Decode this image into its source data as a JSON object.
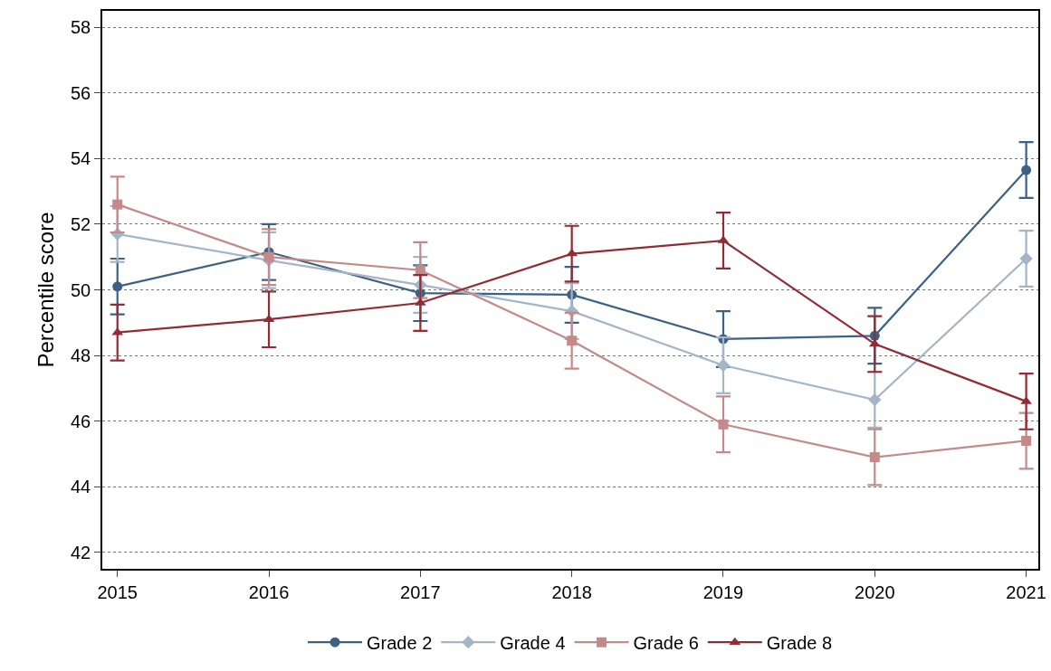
{
  "chart_data": {
    "type": "line",
    "ylabel": "Percentile score",
    "x": [
      2015,
      2016,
      2017,
      2018,
      2019,
      2020,
      2021
    ],
    "xlim": [
      2014.9,
      2021.08
    ],
    "xticks": [
      2015,
      2016,
      2017,
      2018,
      2019,
      2020,
      2021
    ],
    "ylim": [
      41.5,
      58.5
    ],
    "yticks": [
      42,
      44,
      46,
      48,
      50,
      52,
      54,
      56,
      58
    ],
    "grid": "y",
    "legend": "bottom",
    "line_style": "solid",
    "series": [
      {
        "name": "Grade 2",
        "color": "#3d6184",
        "marker": "circle",
        "values": [
          50.1,
          51.15,
          49.9,
          49.85,
          48.5,
          48.6,
          53.65
        ],
        "errors": [
          0.85,
          0.85,
          0.85,
          0.85,
          0.85,
          0.85,
          0.85
        ]
      },
      {
        "name": "Grade 4",
        "color": "#a3b5c6",
        "marker": "diamond",
        "values": [
          51.7,
          50.9,
          50.15,
          49.35,
          47.7,
          46.65,
          50.95
        ],
        "errors": [
          0.85,
          0.85,
          0.85,
          0.85,
          0.85,
          0.85,
          0.85
        ]
      },
      {
        "name": "Grade 6",
        "color": "#c48a8a",
        "marker": "square",
        "values": [
          52.6,
          51.0,
          50.6,
          48.45,
          45.9,
          44.9,
          45.4
        ],
        "errors": [
          0.85,
          0.85,
          0.85,
          0.85,
          0.85,
          0.85,
          0.85
        ]
      },
      {
        "name": "Grade 8",
        "color": "#922b35",
        "marker": "triangle",
        "values": [
          48.7,
          49.1,
          49.6,
          51.1,
          51.5,
          48.35,
          46.6
        ],
        "errors": [
          0.85,
          0.85,
          0.85,
          0.85,
          0.85,
          0.85,
          0.85
        ]
      }
    ]
  }
}
